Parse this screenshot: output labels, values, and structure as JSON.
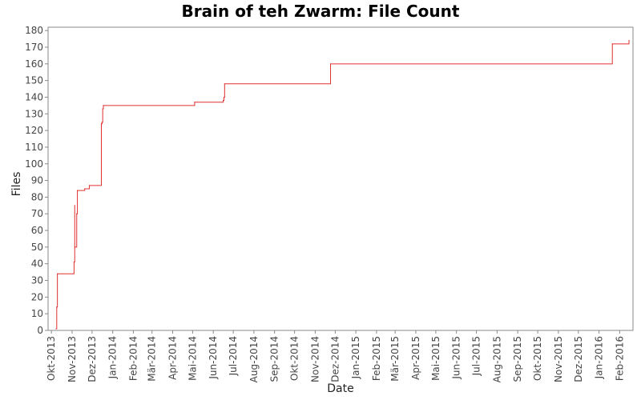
{
  "chart_data": {
    "type": "line",
    "title": "Brain of teh Zwarm: File Count",
    "xlabel": "Date",
    "ylabel": "Files",
    "ylim": [
      0,
      182
    ],
    "y_ticks": [
      0,
      10,
      20,
      30,
      40,
      50,
      60,
      70,
      80,
      90,
      100,
      110,
      120,
      130,
      140,
      150,
      160,
      170,
      180
    ],
    "x_range": [
      "2013-09-26",
      "2016-02-21"
    ],
    "x_ticks": [
      {
        "label": "Okt-2013",
        "date": "2013-10-01"
      },
      {
        "label": "Nov-2013",
        "date": "2013-11-01"
      },
      {
        "label": "Dez-2013",
        "date": "2013-12-01"
      },
      {
        "label": "Jan-2014",
        "date": "2014-01-01"
      },
      {
        "label": "Feb-2014",
        "date": "2014-02-01"
      },
      {
        "label": "Mär-2014",
        "date": "2014-03-01"
      },
      {
        "label": "Apr-2014",
        "date": "2014-04-01"
      },
      {
        "label": "Mai-2014",
        "date": "2014-05-01"
      },
      {
        "label": "Jun-2014",
        "date": "2014-06-01"
      },
      {
        "label": "Jul-2014",
        "date": "2014-07-01"
      },
      {
        "label": "Aug-2014",
        "date": "2014-08-01"
      },
      {
        "label": "Sep-2014",
        "date": "2014-09-01"
      },
      {
        "label": "Okt-2014",
        "date": "2014-10-01"
      },
      {
        "label": "Nov-2014",
        "date": "2014-11-01"
      },
      {
        "label": "Dez-2014",
        "date": "2014-12-01"
      },
      {
        "label": "Jan-2015",
        "date": "2015-01-01"
      },
      {
        "label": "Feb-2015",
        "date": "2015-02-01"
      },
      {
        "label": "Mär-2015",
        "date": "2015-03-01"
      },
      {
        "label": "Apr-2015",
        "date": "2015-04-01"
      },
      {
        "label": "Mai-2015",
        "date": "2015-05-01"
      },
      {
        "label": "Jun-2015",
        "date": "2015-06-01"
      },
      {
        "label": "Jul-2015",
        "date": "2015-07-01"
      },
      {
        "label": "Aug-2015",
        "date": "2015-08-01"
      },
      {
        "label": "Sep-2015",
        "date": "2015-09-01"
      },
      {
        "label": "Okt-2015",
        "date": "2015-10-01"
      },
      {
        "label": "Nov-2015",
        "date": "2015-11-01"
      },
      {
        "label": "Dez-2015",
        "date": "2015-12-01"
      },
      {
        "label": "Jan-2016",
        "date": "2016-01-01"
      },
      {
        "label": "Feb-2016",
        "date": "2016-02-01"
      }
    ],
    "grid": false,
    "series": [
      {
        "color": "#e03030",
        "step": true,
        "points": [
          {
            "x": "2013-10-08",
            "y": 1
          },
          {
            "x": "2013-10-09",
            "y": 14
          },
          {
            "x": "2013-10-10",
            "y": 34
          },
          {
            "x": "2013-11-04",
            "y": 41
          },
          {
            "x": "2013-11-05",
            "y": 75
          },
          {
            "x": "2013-11-05",
            "y": 50
          },
          {
            "x": "2013-11-08",
            "y": 70
          },
          {
            "x": "2013-11-09",
            "y": 84
          },
          {
            "x": "2013-11-20",
            "y": 85
          },
          {
            "x": "2013-11-27",
            "y": 87
          },
          {
            "x": "2013-12-15",
            "y": 124
          },
          {
            "x": "2013-12-16",
            "y": 125
          },
          {
            "x": "2013-12-17",
            "y": 133
          },
          {
            "x": "2013-12-18",
            "y": 135
          },
          {
            "x": "2014-05-04",
            "y": 137
          },
          {
            "x": "2014-06-16",
            "y": 138
          },
          {
            "x": "2014-06-17",
            "y": 140
          },
          {
            "x": "2014-06-18",
            "y": 148
          },
          {
            "x": "2014-11-24",
            "y": 160
          },
          {
            "x": "2016-01-21",
            "y": 172
          },
          {
            "x": "2016-02-15",
            "y": 174
          }
        ]
      }
    ]
  }
}
